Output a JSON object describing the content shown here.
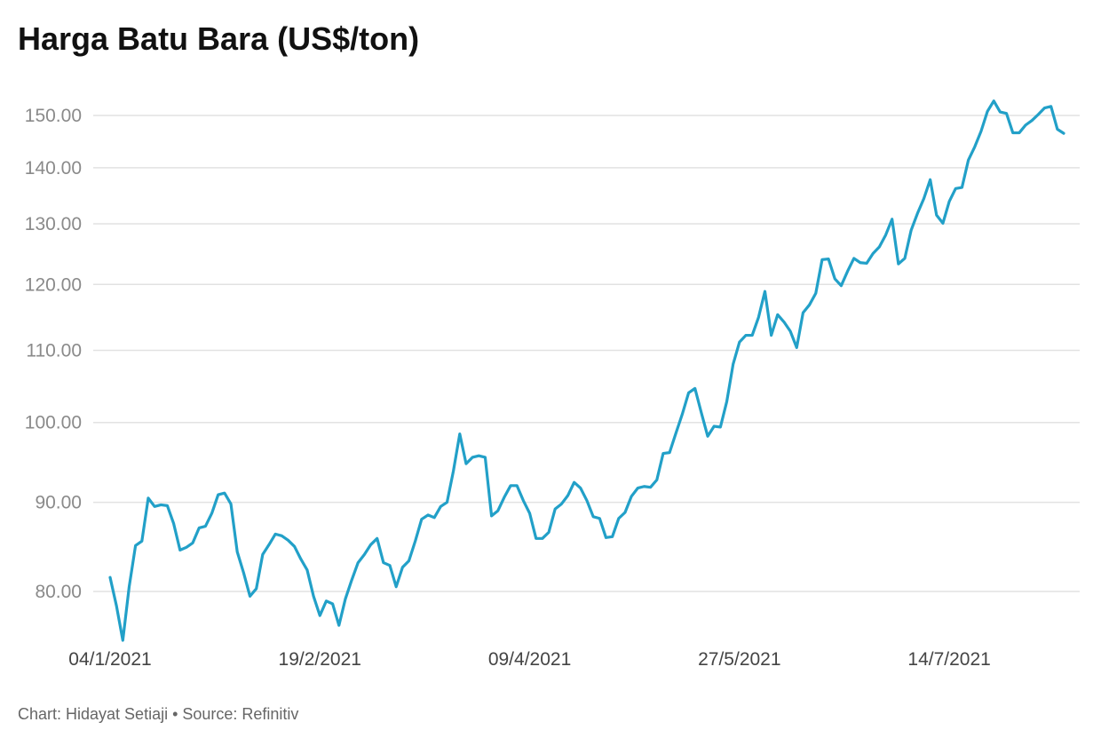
{
  "chart_data": {
    "type": "line",
    "title": "Harga Batu Bara (US$/ton)",
    "xlabel": "",
    "ylabel": "",
    "scale": "log",
    "ylim": [
      74,
      155
    ],
    "y_ticks": [
      80,
      90,
      100,
      110,
      120,
      130,
      140,
      150
    ],
    "y_tick_labels": [
      "80.00",
      "90.00",
      "100.00",
      "110.00",
      "120.00",
      "130.00",
      "140.00",
      "150.00"
    ],
    "x_tick_labels": [
      "04/1/2021",
      "19/2/2021",
      "09/4/2021",
      "27/5/2021",
      "14/7/2021"
    ],
    "grid": true,
    "legend": "none",
    "line_color": "#22a0c8",
    "series": [
      {
        "values": [
          81.5,
          78.5,
          75.0,
          80.5,
          85.0,
          85.5,
          90.5,
          89.5,
          89.7,
          89.6,
          87.5,
          84.5,
          84.8,
          85.3,
          87.0,
          87.2,
          88.7,
          90.9,
          91.1,
          89.8,
          84.3,
          82.0,
          79.5,
          80.3,
          84.0,
          85.1,
          86.3,
          86.1,
          85.6,
          84.9,
          83.5,
          82.3,
          79.5,
          77.5,
          79.0,
          78.7,
          76.5,
          79.2,
          81.2,
          83.1,
          84.0,
          85.1,
          85.8,
          83.1,
          82.8,
          80.5,
          82.6,
          83.3,
          85.5,
          88.0,
          88.5,
          88.2,
          89.5,
          90.0,
          93.8,
          98.5,
          94.7,
          95.5,
          95.7,
          95.5,
          88.4,
          89.0,
          90.6,
          92.0,
          92.0,
          90.2,
          88.7,
          85.8,
          85.8,
          86.5,
          89.2,
          89.8,
          90.8,
          92.4,
          91.7,
          90.2,
          88.3,
          88.1,
          85.9,
          86.0,
          88.1,
          88.8,
          90.7,
          91.7,
          91.9,
          91.8,
          92.7,
          96.0,
          96.1,
          98.6,
          101.1,
          104.0,
          104.6,
          101.3,
          98.2,
          99.5,
          99.4,
          102.8,
          108.0,
          111.2,
          112.2,
          112.2,
          114.9,
          118.9,
          112.2,
          115.3,
          114.2,
          112.8,
          110.4,
          115.6,
          116.8,
          118.6,
          124.0,
          124.1,
          120.9,
          119.8,
          122.1,
          124.2,
          123.5,
          123.4,
          125.0,
          126.1,
          128.1,
          130.8,
          123.3,
          124.2,
          128.9,
          131.8,
          134.4,
          137.8,
          131.5,
          130.1,
          133.9,
          136.2,
          136.4,
          141.4,
          143.9,
          146.9,
          150.8,
          152.9,
          150.7,
          150.4,
          146.6,
          146.6,
          148.1,
          149.0,
          150.2,
          151.5,
          151.8,
          147.3,
          146.5
        ]
      }
    ]
  },
  "footer": {
    "text": "Chart: Hidayat Setiaji • Source: Refinitiv"
  }
}
